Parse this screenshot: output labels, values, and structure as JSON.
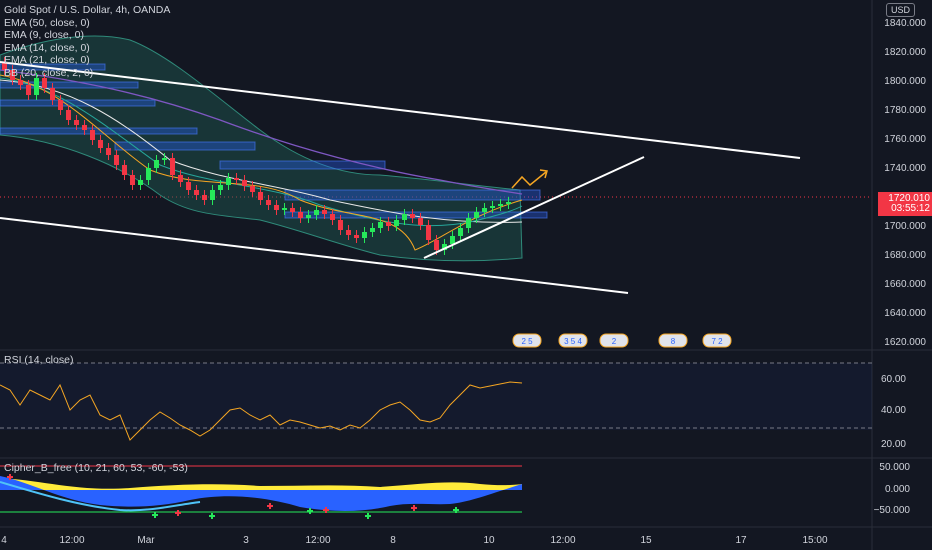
{
  "header": {
    "symbol_line": "Gold Spot / U.S. Dollar, 4h, OANDA",
    "currency": "USD"
  },
  "indicators": [
    "EMA (50, close, 0)",
    "EMA (9, close, 0)",
    "EMA (14, close, 0)",
    "EMA (21, close, 0)",
    "BB (20, close, 2, 0)"
  ],
  "price_axis": {
    "ticks": [
      "1840.000",
      "1820.000",
      "1800.000",
      "1780.000",
      "1760.000",
      "1740.000",
      "1700.000",
      "1680.000",
      "1660.000",
      "1640.000",
      "1620.000"
    ],
    "last_price": "1720.010",
    "countdown": "03:55:12"
  },
  "rsi": {
    "title": "RSI (14, close)",
    "ticks": [
      "60.00",
      "40.00",
      "20.00"
    ]
  },
  "cipher": {
    "title": "Cipher_B_free (10, 21, 60, 53, -60, -53)",
    "ticks": [
      "50.000",
      "0.000",
      "−50.000"
    ]
  },
  "time_axis": [
    "4",
    "12:00",
    "Mar",
    "3",
    "12:00",
    "8",
    "10",
    "12:00",
    "15",
    "17",
    "15:00"
  ],
  "events": [
    {
      "label": "2 5"
    },
    {
      "label": "3 5 4"
    },
    {
      "label": "2"
    },
    {
      "label": "8"
    },
    {
      "label": "7 2"
    }
  ],
  "colors": {
    "background": "#131722",
    "up": "#26e85a",
    "down": "#f23645",
    "trendline": "#ffffff",
    "bb_fill": "#1f5b52"
  }
}
